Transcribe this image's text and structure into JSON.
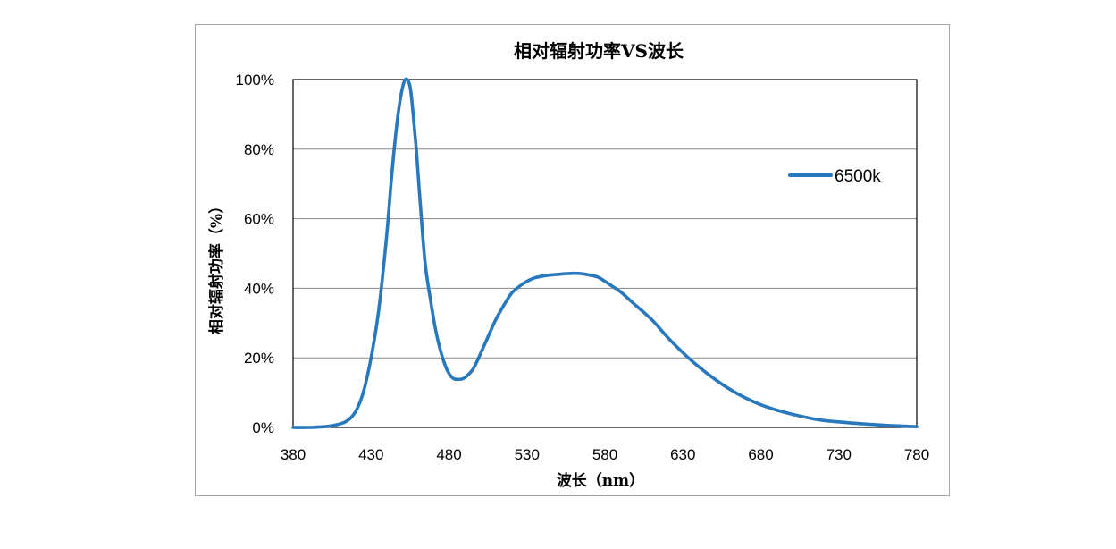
{
  "chart_data": {
    "type": "line",
    "title": "相对辐射功率VS波长",
    "xlabel": "波长（nm）",
    "ylabel": "相对辐射功率（%）",
    "xlim": [
      380,
      780
    ],
    "ylim": [
      0,
      100
    ],
    "x_ticks": [
      380,
      430,
      480,
      530,
      580,
      630,
      680,
      730,
      780
    ],
    "x_tick_labels": [
      "380",
      "430",
      "480",
      "530",
      "580",
      "630",
      "680",
      "730",
      "780"
    ],
    "y_ticks": [
      0,
      20,
      40,
      60,
      80,
      100
    ],
    "y_tick_labels": [
      "0%",
      "20%",
      "40%",
      "60%",
      "80%",
      "100%"
    ],
    "grid": "horizontal",
    "legend_position": "right",
    "series": [
      {
        "name": "6500k",
        "color": "#2878bd",
        "x": [
          380,
          390,
          400,
          405,
          410,
          415,
          420,
          425,
          430,
          435,
          440,
          443,
          446,
          449,
          452,
          455,
          457,
          459,
          461,
          463,
          465,
          468,
          471,
          474,
          477,
          480,
          483,
          486,
          489,
          492,
          495,
          498,
          501,
          505,
          510,
          515,
          520,
          525,
          530,
          535,
          540,
          545,
          550,
          555,
          560,
          565,
          570,
          575,
          580,
          585,
          590,
          595,
          600,
          610,
          620,
          630,
          640,
          650,
          660,
          670,
          680,
          690,
          700,
          710,
          720,
          730,
          740,
          750,
          760,
          770,
          780
        ],
        "values": [
          0.0,
          0.0,
          0.2,
          0.5,
          1.0,
          2.0,
          4.5,
          10.0,
          20.0,
          34.0,
          55.0,
          71.0,
          85.0,
          95.0,
          100.0,
          98.0,
          90.0,
          80.0,
          68.0,
          56.0,
          46.0,
          37.0,
          29.0,
          23.0,
          18.5,
          15.5,
          14.0,
          13.8,
          14.0,
          15.0,
          16.5,
          19.0,
          22.0,
          26.0,
          31.0,
          35.0,
          38.5,
          40.5,
          42.0,
          43.0,
          43.5,
          43.8,
          44.0,
          44.2,
          44.3,
          44.2,
          43.8,
          43.3,
          42.0,
          40.5,
          39.0,
          37.0,
          35.0,
          31.0,
          26.0,
          21.5,
          17.5,
          14.0,
          11.0,
          8.5,
          6.5,
          5.0,
          3.8,
          2.8,
          2.0,
          1.6,
          1.2,
          0.9,
          0.6,
          0.4,
          0.2
        ]
      }
    ]
  }
}
